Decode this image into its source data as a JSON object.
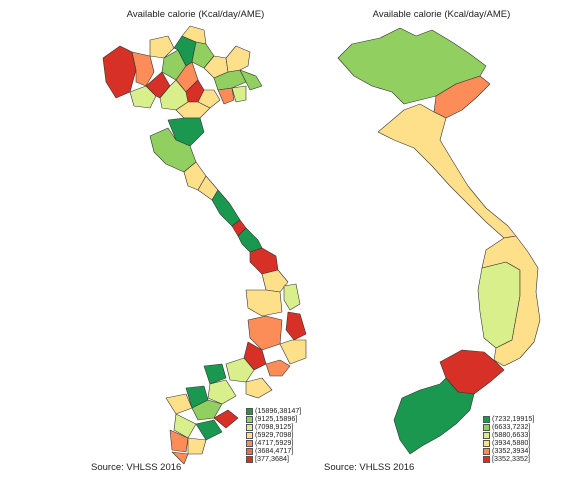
{
  "panels": [
    {
      "title": "Available calorie (Kcal/day/AME)",
      "source": "Source: VHLSS 2016",
      "legend": [
        {
          "label": "(15896,38147]",
          "color": "#1a9850"
        },
        {
          "label": "(9125,15896]",
          "color": "#91cf60"
        },
        {
          "label": "(7098,9125]",
          "color": "#d9ef8b"
        },
        {
          "label": "(5929,7098]",
          "color": "#fee08b"
        },
        {
          "label": "(4717,5929]",
          "color": "#fc8d59"
        },
        {
          "label": "(3684,4717]",
          "color": "#f46d43"
        },
        {
          "label": "[377,3684]",
          "color": "#d73027"
        }
      ]
    },
    {
      "title": "Available calorie (Kcal/day/AME)",
      "source": "Source: VHLSS 2016",
      "legend": [
        {
          "label": "(7232,19915]",
          "color": "#1a9850"
        },
        {
          "label": "(6633,7232]",
          "color": "#91cf60"
        },
        {
          "label": "(5880,6633]",
          "color": "#d9ef8b"
        },
        {
          "label": "(3934,5880]",
          "color": "#fee08b"
        },
        {
          "label": "(3352,3934]",
          "color": "#fc8d59"
        },
        {
          "label": "[3352,3352]",
          "color": "#d73027"
        }
      ]
    }
  ]
}
